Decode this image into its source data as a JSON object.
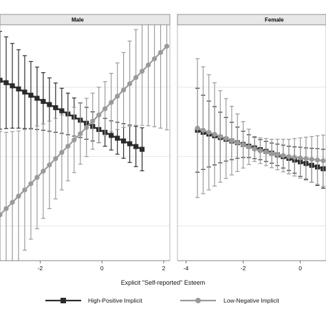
{
  "chart_data": {
    "type": "line",
    "xlabel": "Explicit \"Self-reported\" Esteem",
    "legend": {
      "placement": "bottom",
      "entries": [
        "High-Positive Implicit",
        "Low-Negative Implicit"
      ]
    },
    "grid": true,
    "panels": [
      {
        "title": "Male",
        "xlim": [
          -3.3,
          2.2
        ],
        "xticks": [
          -2,
          0,
          2
        ],
        "ylim": [
          0,
          6.8
        ],
        "series": [
          {
            "name": "High-Positive Implicit",
            "color": "#2b2b2b",
            "x": [
              -3.3,
              -3.1,
              -2.9,
              -2.7,
              -2.5,
              -2.3,
              -2.1,
              -1.9,
              -1.7,
              -1.5,
              -1.3,
              -1.1,
              -0.9,
              -0.7,
              -0.5,
              -0.3,
              -0.1,
              0.1,
              0.3,
              0.5,
              0.7,
              0.9,
              1.1,
              1.3
            ],
            "y": [
              5.2,
              5.13,
              5.04,
              4.95,
              4.86,
              4.77,
              4.68,
              4.59,
              4.5,
              4.41,
              4.32,
              4.23,
              4.14,
              4.05,
              3.96,
              3.87,
              3.78,
              3.7,
              3.61,
              3.53,
              3.45,
              3.37,
              3.29,
              3.21
            ],
            "lower": [
              3.79,
              3.81,
              3.82,
              3.82,
              3.81,
              3.8,
              3.78,
              3.76,
              3.73,
              3.7,
              3.67,
              3.63,
              3.59,
              3.55,
              3.5,
              3.45,
              3.4,
              3.3,
              3.19,
              3.07,
              2.95,
              2.83,
              2.71,
              2.59
            ],
            "upper": [
              6.61,
              6.45,
              6.26,
              6.08,
              5.91,
              5.74,
              5.58,
              5.42,
              5.27,
              5.12,
              4.97,
              4.83,
              4.69,
              4.55,
              4.42,
              4.29,
              4.16,
              4.1,
              4.03,
              3.99,
              3.95,
              3.91,
              3.87,
              3.83
            ]
          },
          {
            "name": "Low-Negative Implicit",
            "color": "#9a9a9a",
            "x": [
              -3.3,
              -3.1,
              -2.9,
              -2.7,
              -2.5,
              -2.3,
              -2.1,
              -1.9,
              -1.7,
              -1.5,
              -1.3,
              -1.1,
              -0.9,
              -0.7,
              -0.5,
              -0.3,
              -0.1,
              0.1,
              0.3,
              0.5,
              0.7,
              0.9,
              1.1,
              1.3,
              1.5,
              1.7,
              1.9,
              2.1
            ],
            "y": [
              1.32,
              1.5,
              1.68,
              1.86,
              2.04,
              2.22,
              2.4,
              2.58,
              2.76,
              2.94,
              3.12,
              3.3,
              3.48,
              3.66,
              3.84,
              4.02,
              4.2,
              4.38,
              4.56,
              4.74,
              4.92,
              5.1,
              5.28,
              5.46,
              5.64,
              5.82,
              6.0,
              6.18
            ],
            "lower": [
              -1.08,
              -0.7,
              -0.36,
              -0.02,
              0.3,
              0.62,
              0.92,
              1.22,
              1.5,
              1.78,
              2.04,
              2.3,
              2.54,
              2.78,
              3.0,
              3.21,
              3.4,
              3.6,
              3.72,
              3.78,
              3.84,
              3.87,
              3.9,
              3.9,
              3.89,
              3.86,
              3.82,
              3.77
            ],
            "upper": [
              3.72,
              3.7,
              3.72,
              3.74,
              3.78,
              3.82,
              3.88,
              3.94,
              4.02,
              4.1,
              4.2,
              4.3,
              4.42,
              4.54,
              4.68,
              4.83,
              5.0,
              5.16,
              5.4,
              5.7,
              6.0,
              6.33,
              6.66,
              7.02,
              7.39,
              7.78,
              8.18,
              8.59
            ]
          }
        ]
      },
      {
        "title": "Female",
        "xlim": [
          -4.3,
          0.9
        ],
        "xticks": [
          -4,
          -2,
          0
        ],
        "ylim": [
          0,
          6.8
        ],
        "series": [
          {
            "name": "High-Positive Implicit",
            "color": "#2b2b2b",
            "x": [
              -3.6,
              -3.4,
              -3.2,
              -3.0,
              -2.8,
              -2.6,
              -2.4,
              -2.2,
              -2.0,
              -1.8,
              -1.6,
              -1.4,
              -1.2,
              -1.0,
              -0.8,
              -0.6,
              -0.4,
              -0.2,
              0.0,
              0.2,
              0.4,
              0.6,
              0.8
            ],
            "y": [
              3.76,
              3.7,
              3.65,
              3.6,
              3.55,
              3.5,
              3.45,
              3.4,
              3.35,
              3.3,
              3.25,
              3.2,
              3.15,
              3.1,
              3.05,
              3.0,
              2.95,
              2.9,
              2.85,
              2.8,
              2.75,
              2.7,
              2.65
            ],
            "lower": [
              2.55,
              2.63,
              2.7,
              2.76,
              2.82,
              2.87,
              2.91,
              2.95,
              2.97,
              2.97,
              2.94,
              2.91,
              2.86,
              2.81,
              2.74,
              2.67,
              2.6,
              2.52,
              2.43,
              2.35,
              2.26,
              2.17,
              2.09
            ],
            "upper": [
              4.97,
              4.77,
              4.6,
              4.44,
              4.28,
              4.13,
              3.99,
              3.85,
              3.73,
              3.63,
              3.56,
              3.49,
              3.44,
              3.39,
              3.36,
              3.33,
              3.3,
              3.28,
              3.27,
              3.25,
              3.24,
              3.23,
              3.21
            ]
          },
          {
            "name": "Low-Negative Implicit",
            "color": "#9a9a9a",
            "x": [
              -3.6,
              -3.4,
              -3.2,
              -3.0,
              -2.8,
              -2.6,
              -2.4,
              -2.2,
              -2.0,
              -1.8,
              -1.6,
              -1.4,
              -1.2,
              -1.0,
              -0.8,
              -0.6,
              -0.4,
              -0.2,
              0.0,
              0.2,
              0.4,
              0.6,
              0.8
            ],
            "y": [
              3.82,
              3.76,
              3.7,
              3.64,
              3.58,
              3.52,
              3.46,
              3.4,
              3.34,
              3.28,
              3.22,
              3.17,
              3.13,
              3.09,
              3.06,
              3.03,
              3.0,
              2.98,
              2.96,
              2.94,
              2.92,
              2.9,
              2.88
            ],
            "lower": [
              1.82,
              1.93,
              2.04,
              2.15,
              2.26,
              2.37,
              2.47,
              2.57,
              2.67,
              2.77,
              2.86,
              2.8,
              2.74,
              2.68,
              2.62,
              2.56,
              2.5,
              2.44,
              2.38,
              2.32,
              2.26,
              2.2,
              2.14
            ],
            "upper": [
              5.82,
              5.59,
              5.36,
              5.13,
              4.9,
              4.67,
              4.45,
              4.23,
              4.01,
              3.79,
              3.58,
              3.54,
              3.52,
              3.5,
              3.5,
              3.5,
              3.5,
              3.52,
              3.54,
              3.56,
              3.58,
              3.6,
              3.62
            ]
          }
        ]
      }
    ]
  }
}
